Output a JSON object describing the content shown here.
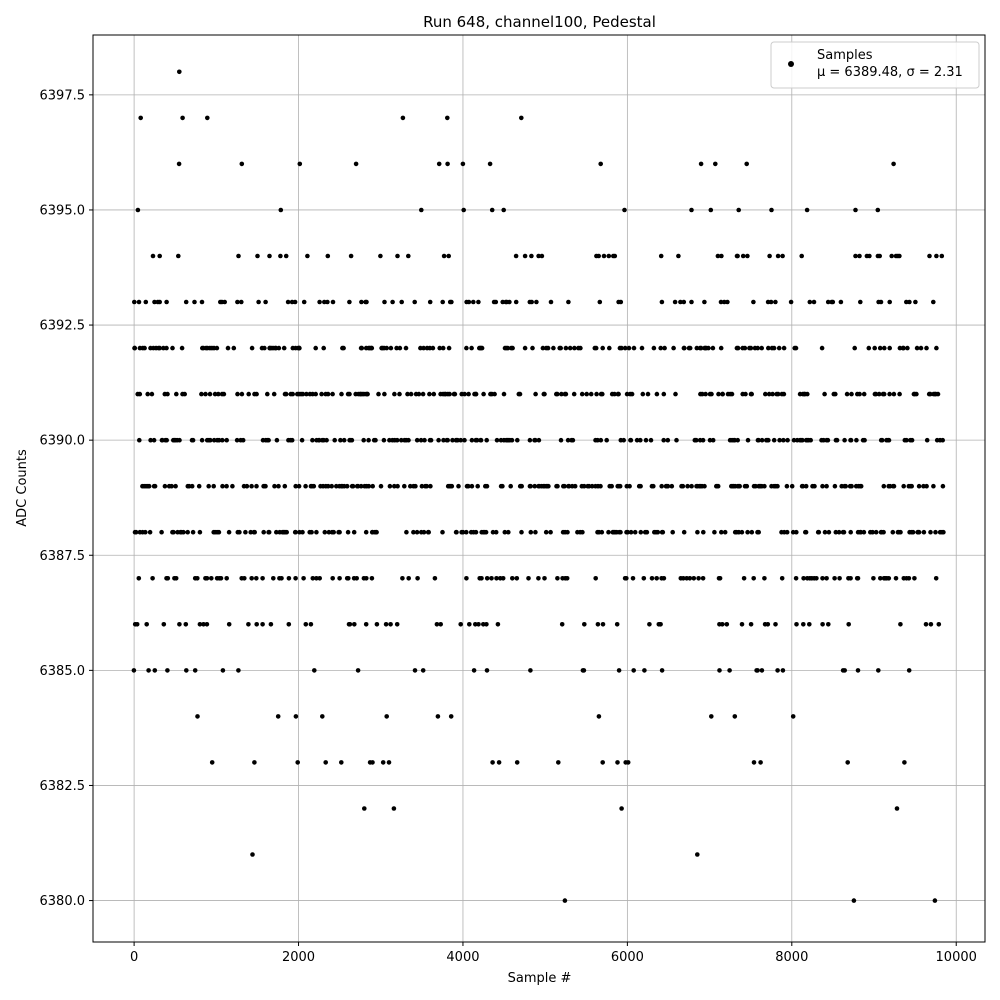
{
  "chart_data": {
    "type": "scatter",
    "title": "Run 648, channel100, Pedestal",
    "xlabel": "Sample #",
    "ylabel": "ADC Counts",
    "xlim": [
      -500,
      10350
    ],
    "ylim": [
      6379.1,
      6398.8
    ],
    "xticks": [
      0,
      2000,
      4000,
      6000,
      8000,
      10000
    ],
    "xtick_labels": [
      "0",
      "2000",
      "4000",
      "6000",
      "8000",
      "10000"
    ],
    "yticks": [
      6380.0,
      6382.5,
      6385.0,
      6387.5,
      6390.0,
      6392.5,
      6395.0,
      6397.5
    ],
    "ytick_labels": [
      "6380.0",
      "6382.5",
      "6385.0",
      "6387.5",
      "6390.0",
      "6392.5",
      "6395.0",
      "6397.5"
    ],
    "grid": true,
    "legend": {
      "position": "top-right",
      "entries": [
        {
          "label": "Samples",
          "stats": "μ = 6389.48, σ = 2.31"
        }
      ]
    },
    "series": [
      {
        "name": "Samples",
        "color": "#000000",
        "marker": "dot",
        "x_range": [
          0,
          9840
        ],
        "density": {
          "6380": 0.00015,
          "6381": 0.0002,
          "6382": 0.0004,
          "6383": 0.002,
          "6384": 0.013,
          "6385": 0.03,
          "6386": 0.07,
          "6387": 0.14,
          "6388": 0.2,
          "6389": 0.23,
          "6390": 0.21,
          "6391": 0.2,
          "6392": 0.17,
          "6393": 0.1,
          "6394": 0.06,
          "6395": 0.018,
          "6396": 0.008,
          "6397": 0.0006,
          "6398": 0.0001
        },
        "points": [
          {
            "x": 1440,
            "y": 6381
          },
          {
            "x": 6850,
            "y": 6381
          },
          {
            "x": 5240,
            "y": 6380
          },
          {
            "x": 9740,
            "y": 6380
          },
          {
            "x": 2800,
            "y": 6382
          },
          {
            "x": 3160,
            "y": 6382
          },
          {
            "x": 5930,
            "y": 6382
          },
          {
            "x": 9280,
            "y": 6382
          },
          {
            "x": 950,
            "y": 6383
          },
          {
            "x": 1990,
            "y": 6383
          },
          {
            "x": 2330,
            "y": 6383
          },
          {
            "x": 2520,
            "y": 6383
          },
          {
            "x": 2870,
            "y": 6383
          },
          {
            "x": 2900,
            "y": 6383
          },
          {
            "x": 3030,
            "y": 6383
          },
          {
            "x": 3100,
            "y": 6383
          },
          {
            "x": 4360,
            "y": 6383
          },
          {
            "x": 4440,
            "y": 6383
          },
          {
            "x": 4660,
            "y": 6383
          },
          {
            "x": 5160,
            "y": 6383
          },
          {
            "x": 5700,
            "y": 6383
          },
          {
            "x": 5880,
            "y": 6383
          },
          {
            "x": 5980,
            "y": 6383
          },
          {
            "x": 6010,
            "y": 6383
          },
          {
            "x": 7540,
            "y": 6383
          },
          {
            "x": 7620,
            "y": 6383
          },
          {
            "x": 8680,
            "y": 6383
          },
          {
            "x": 9370,
            "y": 6383
          },
          {
            "x": 550,
            "y": 6398
          },
          {
            "x": 80,
            "y": 6397
          },
          {
            "x": 590,
            "y": 6397
          },
          {
            "x": 890,
            "y": 6397
          },
          {
            "x": 3270,
            "y": 6397
          },
          {
            "x": 3810,
            "y": 6397
          },
          {
            "x": 4710,
            "y": 6397
          }
        ]
      }
    ]
  }
}
